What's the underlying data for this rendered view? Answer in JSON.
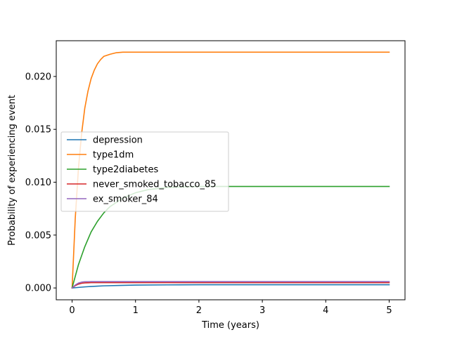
{
  "chart_data": {
    "type": "line",
    "title": "",
    "xlabel": "Time (years)",
    "ylabel": "Probability of experiencing event",
    "xlim": [
      -0.25,
      5.25
    ],
    "ylim": [
      -0.00112,
      0.02338
    ],
    "xticks": [
      0,
      1,
      2,
      3,
      4,
      5
    ],
    "xtick_labels": [
      "0",
      "1",
      "2",
      "3",
      "4",
      "5"
    ],
    "yticks": [
      0.0,
      0.005,
      0.01,
      0.015,
      0.02
    ],
    "ytick_labels": [
      "0.000",
      "0.005",
      "0.010",
      "0.015",
      "0.020"
    ],
    "grid": false,
    "legend_position": "center-left",
    "series": [
      {
        "name": "depression",
        "color": "#1f77b4",
        "x": [
          0,
          0.1,
          0.2,
          0.3,
          0.4,
          0.5,
          0.75,
          1,
          1.5,
          2,
          2.5,
          3,
          4,
          5
        ],
        "y": [
          0.0,
          5e-05,
          0.0001,
          0.00014,
          0.00017,
          0.0002,
          0.00024,
          0.00027,
          0.00029,
          0.0003,
          0.0003,
          0.0003,
          0.0003,
          0.0003
        ]
      },
      {
        "name": "type1dm",
        "color": "#ff7f0e",
        "x": [
          0,
          0.05,
          0.1,
          0.15,
          0.2,
          0.25,
          0.3,
          0.35,
          0.4,
          0.45,
          0.5,
          0.6,
          0.7,
          0.8,
          1,
          1.5,
          2,
          3,
          4,
          5
        ],
        "y": [
          0.0,
          0.0066,
          0.0113,
          0.0146,
          0.017,
          0.0186,
          0.0198,
          0.0206,
          0.0212,
          0.0216,
          0.0219,
          0.0221,
          0.02225,
          0.0223,
          0.0223,
          0.0223,
          0.0223,
          0.0223,
          0.0223,
          0.0223
        ]
      },
      {
        "name": "type2diabetes",
        "color": "#2ca02c",
        "x": [
          0,
          0.1,
          0.2,
          0.3,
          0.4,
          0.5,
          0.6,
          0.8,
          1,
          1.2,
          1.5,
          2,
          2.5,
          3,
          4,
          5
        ],
        "y": [
          0.0,
          0.0022,
          0.0039,
          0.0053,
          0.0063,
          0.0071,
          0.0077,
          0.0085,
          0.009,
          0.0093,
          0.0095,
          0.0096,
          0.0096,
          0.0096,
          0.0096,
          0.0096
        ]
      },
      {
        "name": "never_smoked_tobacco_85",
        "color": "#d62728",
        "x": [
          0,
          0.05,
          0.1,
          0.15,
          0.2,
          0.3,
          0.5,
          1,
          2,
          3,
          4,
          5
        ],
        "y": [
          0.0,
          0.00022,
          0.00036,
          0.00044,
          0.00048,
          0.0005,
          0.0005,
          0.0005,
          0.0005,
          0.0005,
          0.0005,
          0.0005
        ]
      },
      {
        "name": "ex_smoker_84",
        "color": "#9467bd",
        "x": [
          0,
          0.05,
          0.1,
          0.15,
          0.2,
          0.3,
          0.5,
          1,
          2,
          3,
          4,
          5
        ],
        "y": [
          0.0,
          0.00028,
          0.00046,
          0.00055,
          0.00059,
          0.0006,
          0.0006,
          0.0006,
          0.0006,
          0.0006,
          0.0006,
          0.0006
        ]
      }
    ]
  }
}
